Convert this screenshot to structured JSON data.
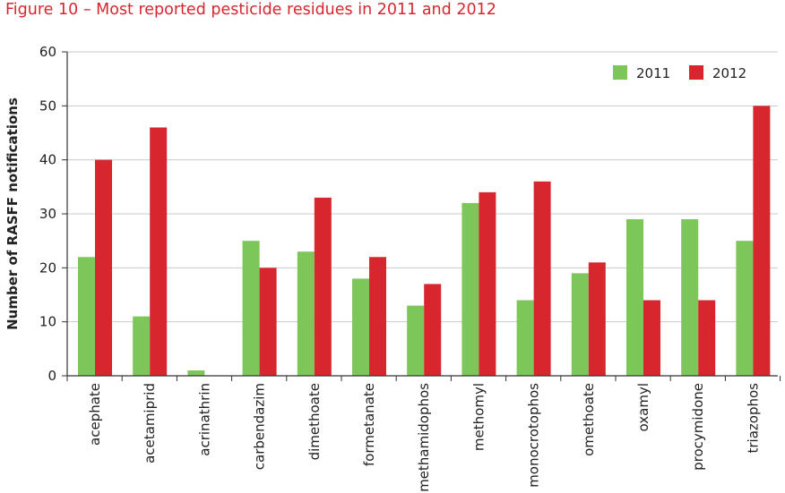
{
  "figure": {
    "title": "Figure 10 – Most reported pesticide residues in 2011 and 2012"
  },
  "chart_data": {
    "type": "bar",
    "title": "Figure 10 – Most reported pesticide residues in 2011 and 2012",
    "xlabel": "",
    "ylabel": "Number of RASFF notifications",
    "ylim": [
      0,
      60
    ],
    "yticks": [
      0,
      10,
      20,
      30,
      40,
      50,
      60
    ],
    "grid": "horizontal",
    "legend": "top-right",
    "categories": [
      "acephate",
      "acetamiprid",
      "acrinathrin",
      "carbendazim",
      "dimethoate",
      "formetanate",
      "methamidophos",
      "methomyl",
      "monocrotophos",
      "omethoate",
      "oxamyl",
      "procymidone",
      "triazophos"
    ],
    "series": [
      {
        "name": "2011",
        "color": "#7dc65a",
        "values": [
          22,
          11,
          1,
          25,
          23,
          18,
          13,
          32,
          14,
          19,
          29,
          29,
          25
        ]
      },
      {
        "name": "2012",
        "color": "#d7262e",
        "values": [
          40,
          46,
          0,
          20,
          33,
          22,
          17,
          34,
          36,
          21,
          14,
          14,
          50
        ]
      }
    ]
  }
}
